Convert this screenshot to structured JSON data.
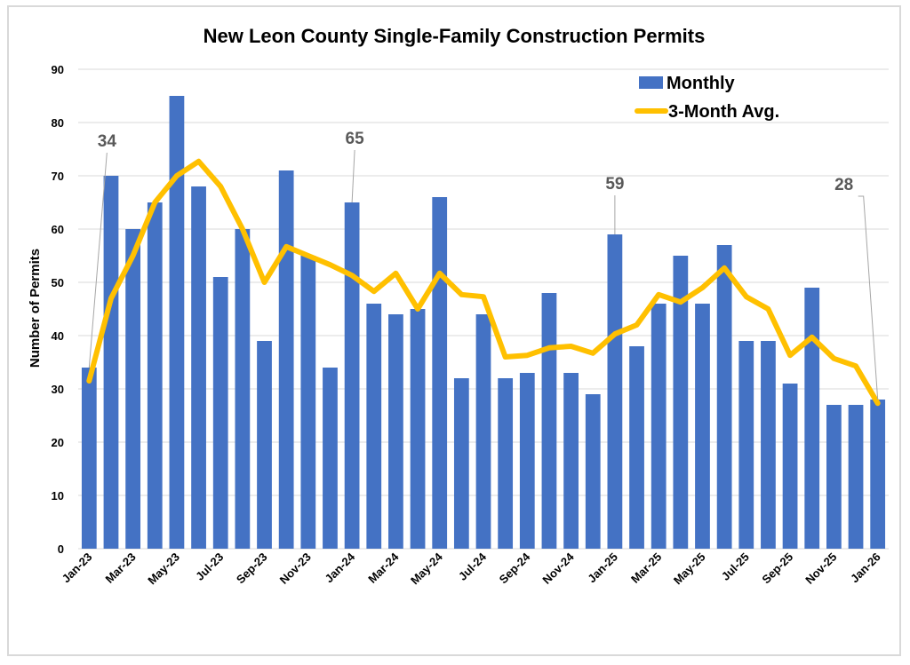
{
  "chart_data": {
    "type": "bar",
    "title": "New Leon County Single-Family Construction Permits",
    "ylabel": "Number of Permits",
    "xlabel": "",
    "ylim": [
      0,
      90
    ],
    "yticks": [
      0,
      10,
      20,
      30,
      40,
      50,
      60,
      70,
      80,
      90
    ],
    "grid": true,
    "legend_position": "top-right",
    "categories": [
      "Jan-23",
      "Feb-23",
      "Mar-23",
      "Apr-23",
      "May-23",
      "Jun-23",
      "Jul-23",
      "Aug-23",
      "Sep-23",
      "Oct-23",
      "Nov-23",
      "Dec-23",
      "Jan-24",
      "Feb-24",
      "Mar-24",
      "Apr-24",
      "May-24",
      "Jun-24",
      "Jul-24",
      "Aug-24",
      "Sep-24",
      "Oct-24",
      "Nov-24",
      "Dec-24",
      "Jan-25",
      "Feb-25",
      "Mar-25",
      "Apr-25",
      "May-25",
      "Jun-25",
      "Jul-25",
      "Aug-25",
      "Sep-25",
      "Oct-25",
      "Nov-25",
      "Dec-25",
      "Jan-26"
    ],
    "xtick_labels": [
      "Jan-23",
      "Mar-23",
      "May-23",
      "Jul-23",
      "Sep-23",
      "Nov-23",
      "Jan-24",
      "Mar-24",
      "May-24",
      "Jul-24",
      "Sep-24",
      "Nov-24",
      "Jan-25",
      "Mar-25",
      "May-25",
      "Jul-25",
      "Sep-25",
      "Nov-25",
      "Jan-26"
    ],
    "series": [
      {
        "name": "Monthly",
        "type": "bar",
        "color": "#4472c4",
        "values": [
          34,
          70,
          60,
          65,
          85,
          68,
          51,
          60,
          39,
          71,
          55,
          34,
          65,
          46,
          44,
          45,
          66,
          32,
          44,
          32,
          33,
          48,
          33,
          29,
          59,
          38,
          46,
          55,
          46,
          57,
          39,
          39,
          31,
          49,
          27,
          27,
          28
        ]
      },
      {
        "name": "3-Month Avg.",
        "type": "line",
        "color": "#ffc000",
        "values": [
          31.5,
          47,
          55,
          65,
          70,
          72.7,
          68,
          60,
          50,
          56.7,
          55,
          53.3,
          51.3,
          48.3,
          51.7,
          45,
          51.7,
          47.7,
          47.3,
          36,
          36.3,
          37.7,
          38,
          36.7,
          40.3,
          42,
          47.7,
          46.3,
          49,
          52.7,
          47.3,
          45,
          36.3,
          39.7,
          35.7,
          34.3,
          27.3
        ]
      }
    ],
    "annotations": [
      {
        "text": "34",
        "category": "Jan-23"
      },
      {
        "text": "65",
        "category": "Jan-24"
      },
      {
        "text": "59",
        "category": "Jan-25"
      },
      {
        "text": "28",
        "category": "Jan-26"
      }
    ]
  }
}
